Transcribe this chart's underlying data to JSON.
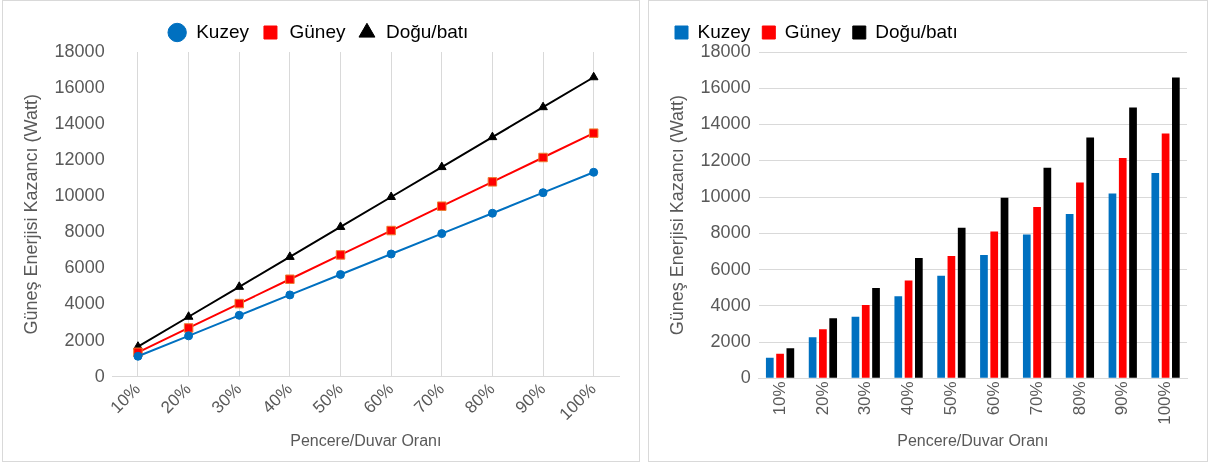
{
  "chart_data": [
    {
      "type": "line",
      "xlabel": "Pencere/Duvar Oranı",
      "ylabel": "Güneş Enerjisi Kazancı (Watt)",
      "categories": [
        "10%",
        "20%",
        "30%",
        "40%",
        "50%",
        "60%",
        "70%",
        "80%",
        "90%",
        "100%"
      ],
      "series": [
        {
          "name": "Kuzey",
          "color": "#0070c0",
          "marker": "circle",
          "values": [
            1130,
            2260,
            3400,
            4530,
            5660,
            6800,
            7930,
            9060,
            10200,
            11330
          ]
        },
        {
          "name": "Güney",
          "color": "#ff0000",
          "marker": "square",
          "values": [
            1350,
            2700,
            4050,
            5400,
            6750,
            8100,
            9450,
            10800,
            12150,
            13500
          ]
        },
        {
          "name": "Doğu/batı",
          "color": "#000000",
          "marker": "triangle",
          "values": [
            1660,
            3320,
            4980,
            6640,
            8300,
            9960,
            11620,
            13280,
            14940,
            16600
          ]
        }
      ],
      "ylim": [
        0,
        18000
      ],
      "yticks": [
        0,
        2000,
        4000,
        6000,
        8000,
        10000,
        12000,
        14000,
        16000,
        18000
      ],
      "grid": "x",
      "legend": "top"
    },
    {
      "type": "bar",
      "xlabel": "Pencere/Duvar Oranı",
      "ylabel": "Güneş Enerjisi Kazancı (Watt)",
      "categories": [
        "10%",
        "20%",
        "30%",
        "40%",
        "50%",
        "60%",
        "70%",
        "80%",
        "90%",
        "100%"
      ],
      "series": [
        {
          "name": "Kuzey",
          "color": "#0070c0",
          "values": [
            1130,
            2260,
            3400,
            4530,
            5660,
            6800,
            7930,
            9060,
            10200,
            11330
          ]
        },
        {
          "name": "Güney",
          "color": "#ff0000",
          "values": [
            1350,
            2700,
            4050,
            5400,
            6750,
            8100,
            9450,
            10800,
            12150,
            13500
          ]
        },
        {
          "name": "Doğu/batı",
          "color": "#000000",
          "values": [
            1660,
            3320,
            4980,
            6640,
            8300,
            9960,
            11620,
            13280,
            14940,
            16600
          ]
        }
      ],
      "ylim": [
        0,
        18000
      ],
      "yticks": [
        0,
        2000,
        4000,
        6000,
        8000,
        10000,
        12000,
        14000,
        16000,
        18000
      ],
      "grid": "y",
      "legend": "top left"
    }
  ]
}
